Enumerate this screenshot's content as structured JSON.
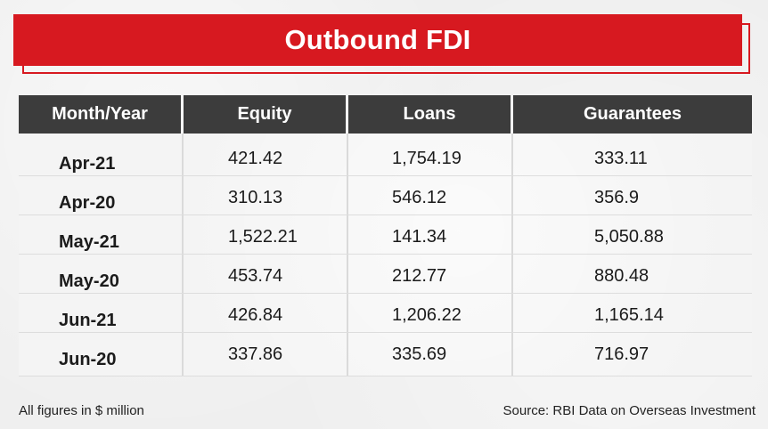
{
  "title": "Outbound FDI",
  "colors": {
    "title_background": "#d71920",
    "header_background": "#3c3c3c",
    "page_background": "#efefef"
  },
  "footer": {
    "note": "All figures in $ million",
    "source": "Source: RBI Data on Overseas Investment"
  },
  "chart_data": {
    "type": "table",
    "title": "Outbound FDI",
    "columns": [
      "Month/Year",
      "Equity",
      "Loans",
      "Guarantees"
    ],
    "rows": [
      [
        "Apr-21",
        "421.42",
        "1,754.19",
        "333.11"
      ],
      [
        "Apr-20",
        "310.13",
        "546.12",
        "356.9"
      ],
      [
        "May-21",
        "1,522.21",
        "141.34",
        "5,050.88"
      ],
      [
        "May-20",
        "453.74",
        "212.77",
        "880.48"
      ],
      [
        "Jun-21",
        "426.84",
        "1,206.22",
        "1,165.14"
      ],
      [
        "Jun-20",
        "337.86",
        "335.69",
        "716.97"
      ]
    ],
    "unit_note": "All figures in $ million",
    "source": "Source: RBI Data on Overseas Investment"
  }
}
